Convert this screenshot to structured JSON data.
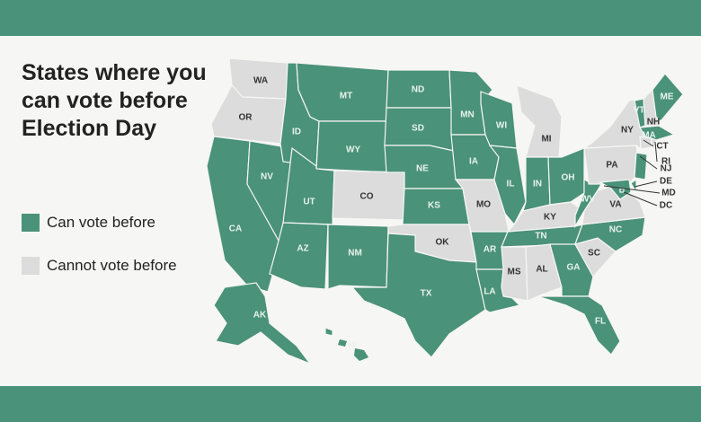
{
  "title": "States where you can vote before Election Day",
  "legend": [
    {
      "label": "Can vote before",
      "color": "#4a9279"
    },
    {
      "label": "Cannot vote before",
      "color": "#dcdcdc"
    }
  ],
  "colors": {
    "can": "#4a9279",
    "cannot": "#dcdcdc",
    "banner": "#4a9279"
  },
  "states": [
    {
      "abbr": "WA",
      "can": false
    },
    {
      "abbr": "OR",
      "can": false
    },
    {
      "abbr": "CA",
      "can": true
    },
    {
      "abbr": "NV",
      "can": true
    },
    {
      "abbr": "ID",
      "can": true
    },
    {
      "abbr": "MT",
      "can": true
    },
    {
      "abbr": "WY",
      "can": true
    },
    {
      "abbr": "UT",
      "can": true
    },
    {
      "abbr": "CO",
      "can": false
    },
    {
      "abbr": "AZ",
      "can": true
    },
    {
      "abbr": "NM",
      "can": true
    },
    {
      "abbr": "ND",
      "can": true
    },
    {
      "abbr": "SD",
      "can": true
    },
    {
      "abbr": "NE",
      "can": true
    },
    {
      "abbr": "KS",
      "can": true
    },
    {
      "abbr": "OK",
      "can": false
    },
    {
      "abbr": "TX",
      "can": true
    },
    {
      "abbr": "MN",
      "can": true
    },
    {
      "abbr": "IA",
      "can": true
    },
    {
      "abbr": "MO",
      "can": false
    },
    {
      "abbr": "AR",
      "can": true
    },
    {
      "abbr": "LA",
      "can": true
    },
    {
      "abbr": "WI",
      "can": true
    },
    {
      "abbr": "IL",
      "can": true
    },
    {
      "abbr": "MI",
      "can": false
    },
    {
      "abbr": "IN",
      "can": true
    },
    {
      "abbr": "OH",
      "can": true
    },
    {
      "abbr": "KY",
      "can": false
    },
    {
      "abbr": "TN",
      "can": true
    },
    {
      "abbr": "MS",
      "can": false
    },
    {
      "abbr": "AL",
      "can": false
    },
    {
      "abbr": "GA",
      "can": true
    },
    {
      "abbr": "FL",
      "can": true
    },
    {
      "abbr": "SC",
      "can": false
    },
    {
      "abbr": "NC",
      "can": true
    },
    {
      "abbr": "VA",
      "can": false
    },
    {
      "abbr": "WV",
      "can": true
    },
    {
      "abbr": "PA",
      "can": false
    },
    {
      "abbr": "NY",
      "can": false
    },
    {
      "abbr": "VT",
      "can": true
    },
    {
      "abbr": "NH",
      "can": false
    },
    {
      "abbr": "ME",
      "can": true
    },
    {
      "abbr": "MA",
      "can": true
    },
    {
      "abbr": "CT",
      "can": false
    },
    {
      "abbr": "RI",
      "can": false
    },
    {
      "abbr": "NJ",
      "can": true
    },
    {
      "abbr": "DE",
      "can": true
    },
    {
      "abbr": "MD",
      "can": true
    },
    {
      "abbr": "DC",
      "can": true
    },
    {
      "abbr": "AK",
      "can": true
    },
    {
      "abbr": "HI",
      "can": true
    }
  ]
}
